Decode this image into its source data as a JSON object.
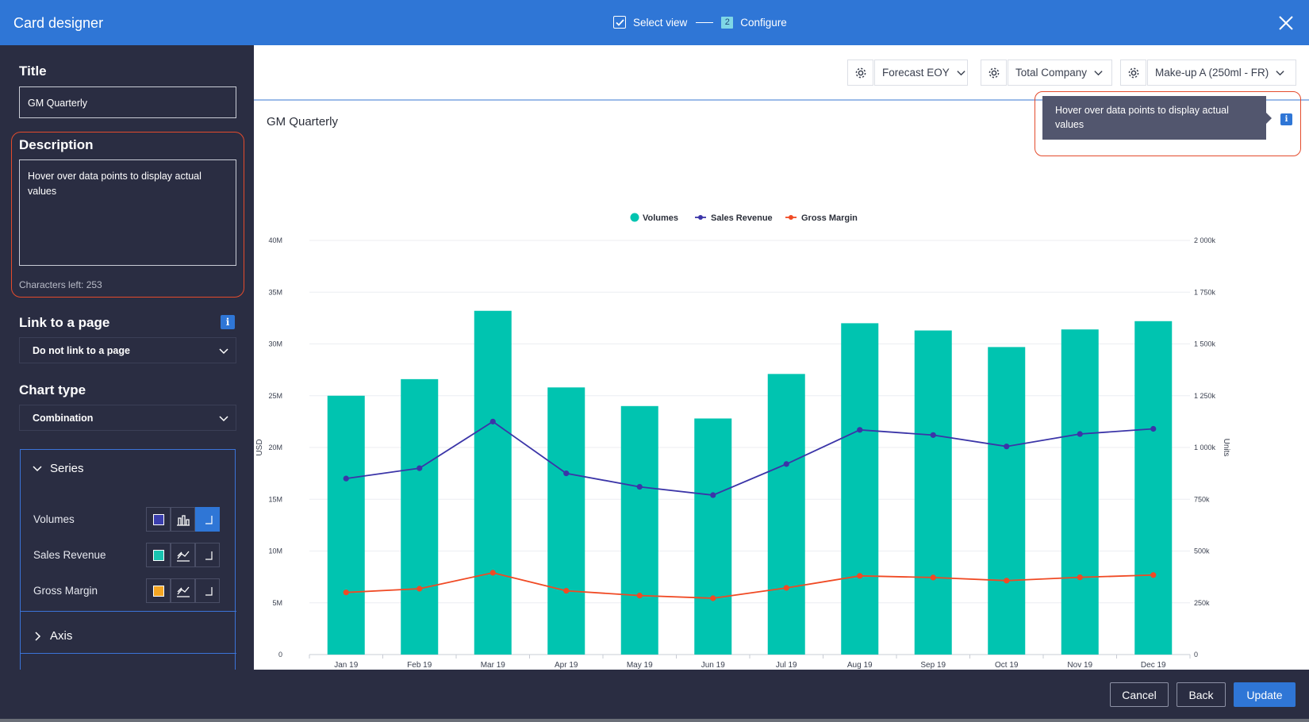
{
  "header": {
    "title": "Card designer",
    "step1_label": "Select view",
    "step2_number": "2",
    "step2_label": "Configure"
  },
  "sidebar": {
    "title_label": "Title",
    "title_value": "GM Quarterly",
    "description_label": "Description",
    "description_value": "Hover over data points to display actual values",
    "characters_left": "Characters left: 253",
    "link_label": "Link to a page",
    "link_value": "Do not link to a page",
    "chart_type_label": "Chart type",
    "chart_type_value": "Combination",
    "info_glyph": "i",
    "series_panel": {
      "series_label": "Series",
      "axis_label": "Axis",
      "rows": [
        {
          "name": "Volumes",
          "swatch": "#3b3fae"
        },
        {
          "name": "Sales Revenue",
          "swatch": "#19c4b0"
        },
        {
          "name": "Gross Margin",
          "swatch": "#f5a623"
        }
      ]
    }
  },
  "filters": {
    "scenario": "Forecast EOY",
    "entity": "Total Company",
    "product": "Make-up A (250ml - FR)"
  },
  "card": {
    "title": "GM Quarterly",
    "tooltip": "Hover over data points to display actual values"
  },
  "footer": {
    "cancel": "Cancel",
    "back": "Back",
    "update": "Update"
  },
  "colors": {
    "accent": "#2f76d6",
    "bar": "#00c4b0",
    "line_revenue": "#3b35a8",
    "line_margin": "#f04a24",
    "highlight": "#e44b2c"
  },
  "chart_data": {
    "type": "bar",
    "categories": [
      "Jan 19",
      "Feb 19",
      "Mar 19",
      "Apr 19",
      "May 19",
      "Jun 19",
      "Jul 19",
      "Aug 19",
      "Sep 19",
      "Oct 19",
      "Nov 19",
      "Dec 19"
    ],
    "series": [
      {
        "name": "Volumes",
        "type": "bar",
        "axis": "left",
        "values": [
          25.0,
          26.6,
          33.2,
          25.8,
          24.0,
          22.8,
          27.1,
          32.0,
          31.3,
          29.7,
          31.4,
          32.2
        ]
      },
      {
        "name": "Sales Revenue",
        "type": "line",
        "axis": "right",
        "values": [
          850,
          900,
          1125,
          875,
          810,
          770,
          920,
          1085,
          1060,
          1005,
          1065,
          1090
        ]
      },
      {
        "name": "Gross Margin",
        "type": "line",
        "axis": "right",
        "values": [
          300,
          318,
          395,
          308,
          285,
          272,
          322,
          380,
          372,
          357,
          373,
          384
        ]
      }
    ],
    "y_left": {
      "label": "USD",
      "ylim": [
        0,
        40
      ],
      "ticks": [
        "0",
        "5M",
        "10M",
        "15M",
        "20M",
        "25M",
        "30M",
        "35M",
        "40M"
      ]
    },
    "y_right": {
      "label": "Units",
      "ylim": [
        0,
        2000
      ],
      "ticks": [
        "0",
        "250k",
        "500k",
        "750k",
        "1 000k",
        "1 250k",
        "1 500k",
        "1 750k",
        "2 000k"
      ]
    },
    "legend": "top-center",
    "grid": true
  }
}
